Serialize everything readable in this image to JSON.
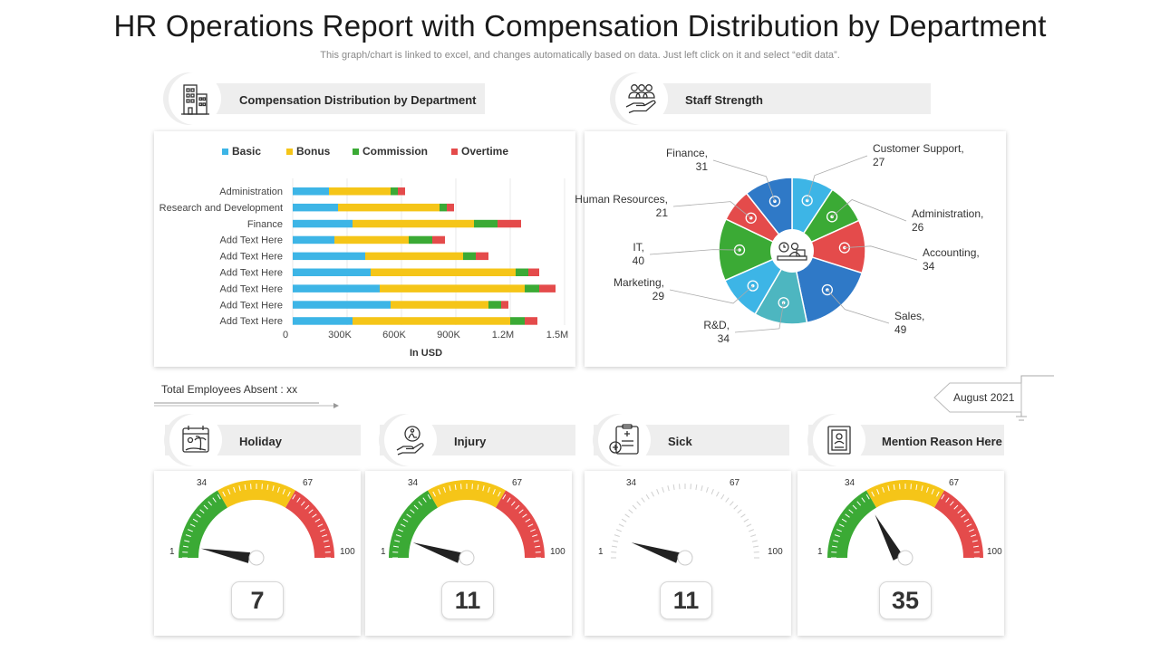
{
  "header": {
    "title": "HR Operations Report with Compensation Distribution by Department",
    "subtitle": "This graph/chart is linked to excel, and changes automatically based on data. Just left click on it and select “edit data”."
  },
  "comp_section": {
    "label": "Compensation Distribution by Department",
    "icon": "office-building-icon"
  },
  "staff_section": {
    "label": "Staff Strength",
    "icon": "people-hand-icon"
  },
  "absent": {
    "label": "Total Employees Absent : xx"
  },
  "date_tag": {
    "label": "August 2021"
  },
  "colors": {
    "basic": "#3DB5E6",
    "bonus": "#F5C518",
    "commission": "#3BAA35",
    "overtime": "#E44B4B",
    "teal": "#4DB6C0",
    "blue": "#2F79C7"
  },
  "chart_data": [
    {
      "type": "bar",
      "orientation": "horizontal",
      "stacked": true,
      "title": "Compensation Distribution by Department",
      "xlabel": "In USD",
      "ylabel": "",
      "xlim": [
        0,
        1500000
      ],
      "x_ticks": [
        "0",
        "300K",
        "600K",
        "900K",
        "1.2M",
        "1.5M"
      ],
      "categories": [
        "Administration",
        "Research and Development",
        "Finance",
        "Add Text Here",
        "Add Text Here",
        "Add Text Here",
        "Add Text Here",
        "Add Text Here",
        "Add Text Here"
      ],
      "series": [
        {
          "name": "Basic",
          "color": "#3DB5E6",
          "values": [
            200000,
            250000,
            330000,
            230000,
            400000,
            430000,
            480000,
            540000,
            330000
          ]
        },
        {
          "name": "Bonus",
          "color": "#F5C518",
          "values": [
            340000,
            560000,
            670000,
            410000,
            540000,
            800000,
            800000,
            540000,
            870000
          ]
        },
        {
          "name": "Commission",
          "color": "#3BAA35",
          "values": [
            40000,
            40000,
            130000,
            130000,
            70000,
            70000,
            80000,
            70000,
            80000
          ]
        },
        {
          "name": "Overtime",
          "color": "#E44B4B",
          "values": [
            40000,
            40000,
            130000,
            70000,
            70000,
            60000,
            90000,
            40000,
            70000
          ]
        }
      ],
      "legend": "top"
    },
    {
      "type": "pie",
      "title": "Staff Strength",
      "slices": [
        {
          "label": "Customer Support",
          "value": 27,
          "color": "#3DB5E6",
          "text": "Customer Support, 27"
        },
        {
          "label": "Administration",
          "value": 26,
          "color": "#3BAA35",
          "text": "Administration, 26"
        },
        {
          "label": "Accounting",
          "value": 34,
          "color": "#E44B4B",
          "text": "Accounting, 34"
        },
        {
          "label": "Sales",
          "value": 49,
          "color": "#2F79C7",
          "text": "Sales, 49"
        },
        {
          "label": "R&D",
          "value": 34,
          "color": "#4DB6C0",
          "text": "R&D, 34"
        },
        {
          "label": "Marketing",
          "value": 29,
          "color": "#3DB5E6",
          "text": "Marketing, 29"
        },
        {
          "label": "IT",
          "value": 40,
          "color": "#3BAA35",
          "text": "IT, 40"
        },
        {
          "label": "Human Resources",
          "value": 21,
          "color": "#E44B4B",
          "text": "Human Resources, 21"
        },
        {
          "label": "Finance",
          "value": 31,
          "color": "#2F79C7",
          "text": "Finance, 31"
        }
      ]
    }
  ],
  "gauges": [
    {
      "label": "Holiday",
      "icon": "beach-calendar-icon",
      "value": 7,
      "display": "7",
      "colored": true
    },
    {
      "label": "Injury",
      "icon": "hand-injury-icon",
      "value": 11,
      "display": "11",
      "colored": true
    },
    {
      "label": "Sick",
      "icon": "medical-report-icon",
      "value": 11,
      "display": "11",
      "colored": false
    },
    {
      "label": "Mention Reason Here",
      "icon": "document-icon",
      "value": 35,
      "display": "35",
      "colored": true
    }
  ],
  "gauge_ticks": {
    "min": "1",
    "low": "34",
    "high": "67",
    "max": "100"
  }
}
